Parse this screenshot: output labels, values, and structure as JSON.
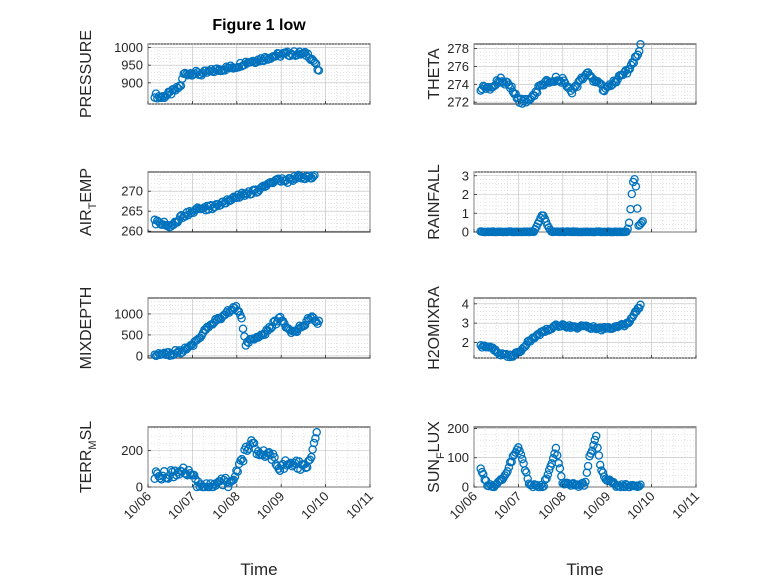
{
  "figure": {
    "title": "Figure 1 low"
  },
  "x_axis": {
    "label": "Time",
    "ticks": [
      "10/06",
      "10/07",
      "10/08",
      "10/09",
      "10/10",
      "10/11"
    ],
    "range_days": [
      0,
      5
    ]
  },
  "colors": {
    "marker": "#0072BD",
    "axis": "#262626"
  },
  "chart_data": [
    {
      "type": "scatter",
      "ylabel_main": "PRESSURE",
      "ylabel_sub": "",
      "ylabel_tail": "",
      "ylim": [
        840,
        1010
      ],
      "yticks": [
        900,
        950,
        1000
      ],
      "grid": true,
      "anchors": [
        [
          0.15,
          865
        ],
        [
          0.3,
          858
        ],
        [
          0.5,
          870
        ],
        [
          0.65,
          882
        ],
        [
          0.75,
          895
        ],
        [
          0.8,
          925
        ],
        [
          1.0,
          928
        ],
        [
          1.2,
          925
        ],
        [
          1.5,
          935
        ],
        [
          1.7,
          940
        ],
        [
          1.95,
          945
        ],
        [
          2.2,
          958
        ],
        [
          2.5,
          965
        ],
        [
          2.8,
          975
        ],
        [
          3.1,
          982
        ],
        [
          3.4,
          983
        ],
        [
          3.6,
          980
        ],
        [
          3.75,
          960
        ],
        [
          3.85,
          928
        ]
      ],
      "noise": 7,
      "count": 120
    },
    {
      "type": "scatter",
      "ylabel_main": "THETA",
      "ylabel_sub": "",
      "ylabel_tail": "",
      "ylim": [
        271.8,
        278.5
      ],
      "yticks": [
        272,
        274,
        276,
        278
      ],
      "grid": true,
      "anchors": [
        [
          0.15,
          273.5
        ],
        [
          0.4,
          273.6
        ],
        [
          0.6,
          274.6
        ],
        [
          0.85,
          273.5
        ],
        [
          1.0,
          272.2
        ],
        [
          1.2,
          272.0
        ],
        [
          1.5,
          273.8
        ],
        [
          1.75,
          274.6
        ],
        [
          2.0,
          274.4
        ],
        [
          2.2,
          273.0
        ],
        [
          2.35,
          274.0
        ],
        [
          2.55,
          275.3
        ],
        [
          2.75,
          274.2
        ],
        [
          2.95,
          273.4
        ],
        [
          3.15,
          274.2
        ],
        [
          3.4,
          275.2
        ],
        [
          3.6,
          276.5
        ],
        [
          3.75,
          278.2
        ]
      ],
      "noise": 0.3,
      "count": 120
    },
    {
      "type": "scatter",
      "ylabel_main": "AIR",
      "ylabel_sub": "T",
      "ylabel_tail": "EMP",
      "ylim": [
        259.8,
        274.8
      ],
      "yticks": [
        260,
        265,
        270
      ],
      "grid": true,
      "anchors": [
        [
          0.15,
          262.3
        ],
        [
          0.35,
          261.8
        ],
        [
          0.5,
          261.0
        ],
        [
          0.75,
          263.5
        ],
        [
          1.0,
          265.0
        ],
        [
          1.3,
          265.8
        ],
        [
          1.6,
          266.5
        ],
        [
          1.9,
          268.0
        ],
        [
          2.2,
          269.5
        ],
        [
          2.45,
          270.0
        ],
        [
          2.7,
          271.5
        ],
        [
          2.9,
          273.0
        ],
        [
          3.1,
          272.5
        ],
        [
          3.4,
          273.5
        ],
        [
          3.75,
          273.8
        ]
      ],
      "noise": 0.6,
      "count": 120
    },
    {
      "type": "scatter",
      "ylabel_main": "RAINFALL",
      "ylabel_sub": "",
      "ylabel_tail": "",
      "ylim": [
        0,
        3.2
      ],
      "yticks": [
        0,
        1,
        2,
        3
      ],
      "grid": true,
      "anchors": [
        [
          0.15,
          0
        ],
        [
          1.35,
          0
        ],
        [
          1.45,
          0.5
        ],
        [
          1.55,
          0.95
        ],
        [
          1.65,
          0.4
        ],
        [
          1.75,
          0
        ],
        [
          3.45,
          0
        ],
        [
          3.5,
          0.6
        ],
        [
          3.55,
          1.9
        ],
        [
          3.6,
          3.0
        ],
        [
          3.65,
          2.4
        ],
        [
          3.7,
          0.3
        ],
        [
          3.8,
          0.6
        ]
      ],
      "noise": 0.03,
      "count": 120
    },
    {
      "type": "scatter",
      "ylabel_main": "MIXDEPTH",
      "ylabel_sub": "",
      "ylabel_tail": "",
      "ylim": [
        -50,
        1380
      ],
      "yticks": [
        0,
        500,
        1000
      ],
      "grid": true,
      "anchors": [
        [
          0.15,
          10
        ],
        [
          0.5,
          40
        ],
        [
          0.8,
          130
        ],
        [
          1.0,
          250
        ],
        [
          1.2,
          500
        ],
        [
          1.5,
          800
        ],
        [
          1.8,
          1050
        ],
        [
          1.95,
          1200
        ],
        [
          2.1,
          950
        ],
        [
          2.2,
          300
        ],
        [
          2.4,
          400
        ],
        [
          2.6,
          500
        ],
        [
          2.8,
          750
        ],
        [
          3.0,
          880
        ],
        [
          3.2,
          550
        ],
        [
          3.5,
          700
        ],
        [
          3.65,
          950
        ],
        [
          3.85,
          800
        ]
      ],
      "noise": 60,
      "count": 120
    },
    {
      "type": "scatter",
      "ylabel_main": "H2OMIXRA",
      "ylabel_sub": "",
      "ylabel_tail": "",
      "ylim": [
        1.2,
        4.3
      ],
      "yticks": [
        2,
        3,
        4
      ],
      "grid": true,
      "anchors": [
        [
          0.15,
          1.8
        ],
        [
          0.4,
          1.7
        ],
        [
          0.6,
          1.4
        ],
        [
          0.85,
          1.3
        ],
        [
          1.0,
          1.45
        ],
        [
          1.2,
          2.0
        ],
        [
          1.5,
          2.5
        ],
        [
          1.9,
          2.9
        ],
        [
          2.2,
          2.8
        ],
        [
          2.6,
          2.8
        ],
        [
          2.9,
          2.7
        ],
        [
          3.2,
          2.8
        ],
        [
          3.5,
          3.0
        ],
        [
          3.6,
          3.5
        ],
        [
          3.75,
          3.95
        ]
      ],
      "noise": 0.08,
      "count": 120
    },
    {
      "type": "scatter",
      "ylabel_main": "TERR",
      "ylabel_sub": "M",
      "ylabel_tail": "SL",
      "ylim": [
        0,
        330
      ],
      "yticks": [
        0,
        200
      ],
      "grid": true,
      "anchors": [
        [
          0.15,
          60
        ],
        [
          0.5,
          70
        ],
        [
          0.8,
          90
        ],
        [
          1.0,
          80
        ],
        [
          1.1,
          5
        ],
        [
          1.4,
          2
        ],
        [
          1.6,
          40
        ],
        [
          1.9,
          10
        ],
        [
          2.1,
          140
        ],
        [
          2.3,
          250
        ],
        [
          2.5,
          180
        ],
        [
          2.75,
          190
        ],
        [
          2.95,
          100
        ],
        [
          3.2,
          140
        ],
        [
          3.45,
          110
        ],
        [
          3.65,
          140
        ],
        [
          3.8,
          300
        ]
      ],
      "noise": 25,
      "count": 120
    },
    {
      "type": "scatter",
      "ylabel_main": "SUN",
      "ylabel_sub": "F",
      "ylabel_tail": "LUX",
      "ylim": [
        0,
        205
      ],
      "yticks": [
        0,
        100,
        200
      ],
      "grid": true,
      "anchors": [
        [
          0.15,
          60
        ],
        [
          0.3,
          10
        ],
        [
          0.45,
          0
        ],
        [
          0.7,
          40
        ],
        [
          0.9,
          110
        ],
        [
          1.0,
          130
        ],
        [
          1.1,
          90
        ],
        [
          1.25,
          5
        ],
        [
          1.55,
          0
        ],
        [
          1.7,
          60
        ],
        [
          1.85,
          135
        ],
        [
          1.9,
          90
        ],
        [
          2.0,
          15
        ],
        [
          2.3,
          5
        ],
        [
          2.5,
          10
        ],
        [
          2.6,
          100
        ],
        [
          2.75,
          170
        ],
        [
          2.85,
          70
        ],
        [
          2.95,
          30
        ],
        [
          3.05,
          20
        ],
        [
          3.2,
          5
        ],
        [
          3.5,
          3
        ],
        [
          3.75,
          5
        ]
      ],
      "noise": 6,
      "count": 120
    }
  ]
}
